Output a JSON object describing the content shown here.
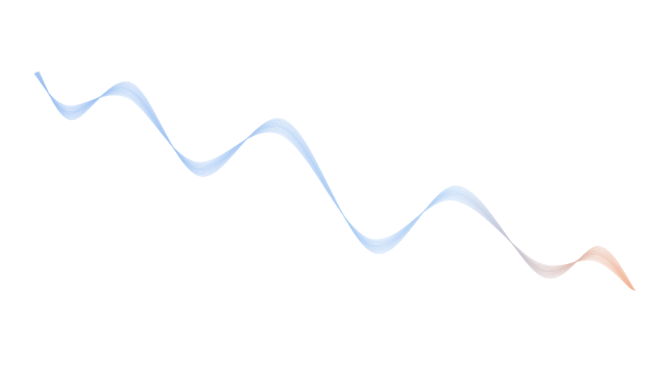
{
  "background_color": "#ffffff",
  "wave": {
    "start_color": "#9cc0f2",
    "mid_color": "#b4d2f5",
    "end_color": "#f4b08e"
  }
}
